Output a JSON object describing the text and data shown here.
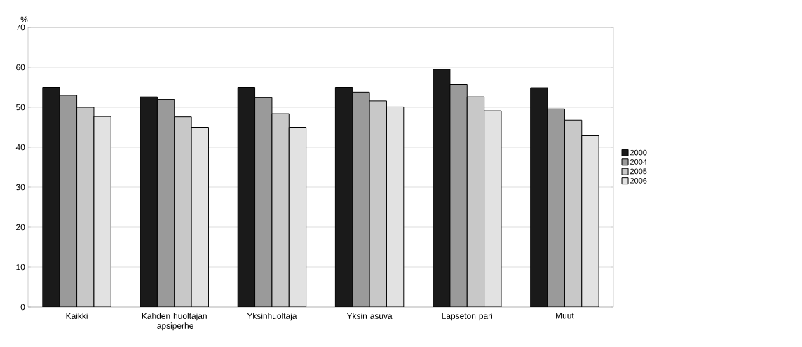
{
  "chart_data": {
    "type": "bar",
    "ylabel": "%",
    "categories": [
      "Kaikki",
      "Kahden huoltajan lapsiperhe",
      "Yksinhuoltaja",
      "Yksin asuva",
      "Lapseton pari",
      "Muut"
    ],
    "series": [
      {
        "name": "2000",
        "color": "#1a1a1a",
        "values": [
          55,
          52.6,
          55,
          55,
          59.5,
          54.9
        ]
      },
      {
        "name": "2004",
        "color": "#9a9a9a",
        "values": [
          53,
          52,
          52.4,
          53.8,
          55.7,
          49.6
        ]
      },
      {
        "name": "2005",
        "color": "#c8c8c8",
        "values": [
          50,
          47.6,
          48.4,
          51.6,
          52.6,
          46.8
        ]
      },
      {
        "name": "2006",
        "color": "#e2e2e2",
        "values": [
          47.7,
          45,
          45,
          50.1,
          49.1,
          42.9
        ]
      }
    ],
    "ylim": [
      0,
      70
    ],
    "yticks": [
      0,
      10,
      20,
      30,
      40,
      50,
      60,
      70
    ],
    "grid": "y",
    "legend": "right"
  }
}
